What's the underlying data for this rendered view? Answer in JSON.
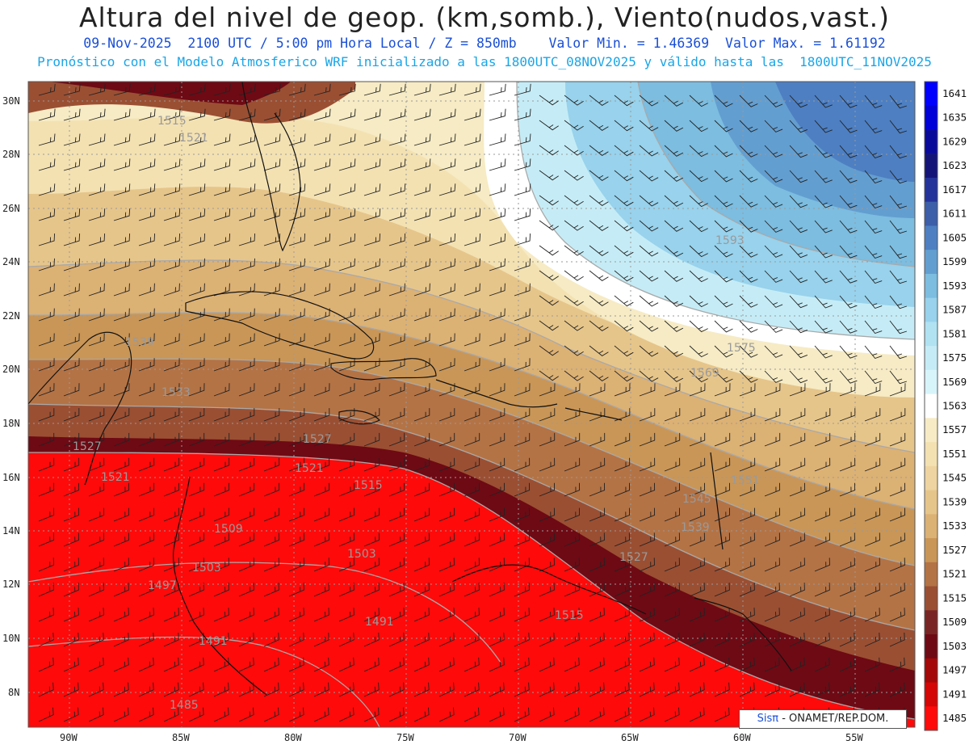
{
  "header": {
    "title": "Altura del nivel de geop. (km,somb.), Viento(nudos,vast.)",
    "line1": "09-Nov-2025  2100 UTC / 5:00 pm Hora Local / Z = 850mb    Valor Min. = 1.46369  Valor Max. = 1.61192",
    "line2": "Pronóstico con el Modelo Atmosferico WRF inicializado a las 1800UTC_08NOV2025 y válido hasta las  1800UTC_11NOV2025"
  },
  "map": {
    "lat_labels": [
      "30N",
      "28N",
      "26N",
      "24N",
      "22N",
      "20N",
      "18N",
      "16N",
      "14N",
      "12N",
      "10N",
      "8N"
    ],
    "lon_labels": [
      "90W",
      "85W",
      "80W",
      "75W",
      "70W",
      "65W",
      "60W",
      "55W"
    ],
    "contour_labels": [
      "1515",
      "1521",
      "1539",
      "1533",
      "1527",
      "1521",
      "1509",
      "1503",
      "1497",
      "1491",
      "1491",
      "1485",
      "1503",
      "1515",
      "1521",
      "1527",
      "1515",
      "1551",
      "1545",
      "1539",
      "1569",
      "1575",
      "1593",
      "1527"
    ],
    "colors": {
      "red": "#ff0a0a",
      "dark_red": "#6e0a14",
      "brown": "#a55a3a",
      "tan": "#d4a56a",
      "cream": "#f3e1b2",
      "white": "#ffffff",
      "light_blue": "#c5ecf6",
      "mid_blue": "#7cbde0",
      "blue": "#4d7fc2"
    }
  },
  "colorbar": {
    "levels": [
      "1641",
      "1635",
      "1629",
      "1623",
      "1617",
      "1611",
      "1605",
      "1599",
      "1593",
      "1587",
      "1581",
      "1575",
      "1569",
      "1563",
      "1557",
      "1551",
      "1545",
      "1539",
      "1533",
      "1527",
      "1521",
      "1515",
      "1509",
      "1503",
      "1497",
      "1491",
      "1485"
    ],
    "colors": [
      "#0000ff",
      "#0000d8",
      "#0a0a9a",
      "#141478",
      "#24339a",
      "#3d5ea8",
      "#4d7fc2",
      "#639ed0",
      "#7cbde0",
      "#98d2ec",
      "#b0e2f2",
      "#c5ecf6",
      "#d8f4fb",
      "#ffffff",
      "#f6ebc4",
      "#f3e1b2",
      "#eed4a0",
      "#e6c58a",
      "#dcb174",
      "#c99657",
      "#b47345",
      "#9a4f33",
      "#7a2525",
      "#6e0a14",
      "#a40808",
      "#d40606",
      "#ff0a0a"
    ]
  },
  "credit": {
    "brand": "Sisπ",
    "text": " - ONAMET/REP.DOM."
  }
}
